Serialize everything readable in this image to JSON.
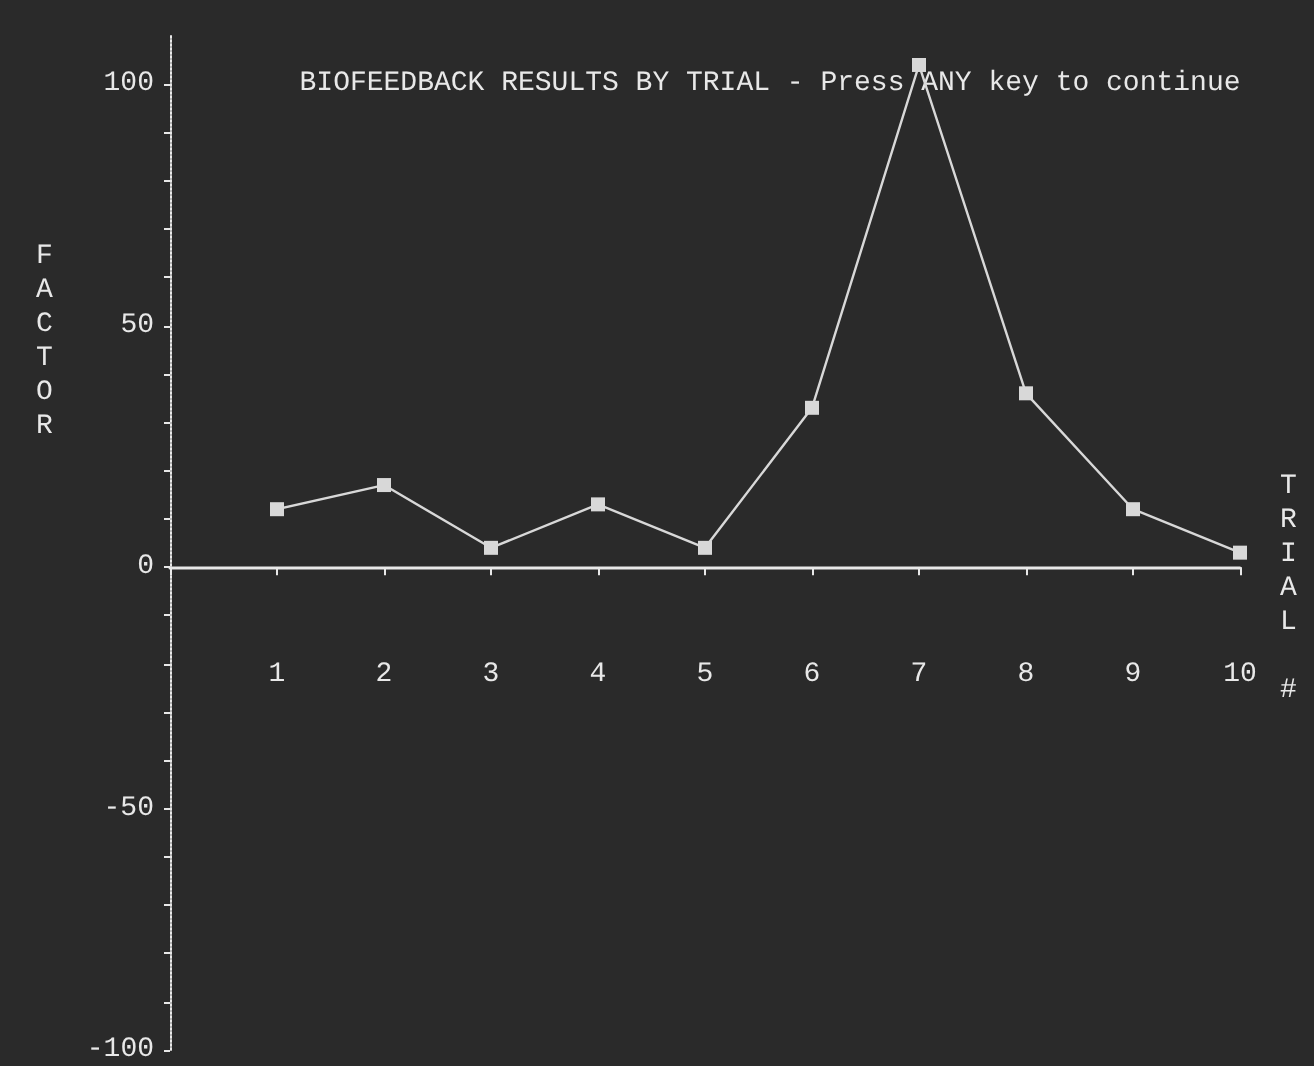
{
  "chart_data": {
    "type": "line",
    "title": "BIOFEEDBACK RESULTS BY TRIAL - Press ANY key to continue",
    "xlabel": "TRIAL #",
    "ylabel": "FACTOR",
    "x": [
      1,
      2,
      3,
      4,
      5,
      6,
      7,
      8,
      9,
      10
    ],
    "series": [
      {
        "color": "#d8d8d8",
        "values": [
          12,
          17,
          4,
          13,
          4,
          33,
          104,
          36,
          12,
          3
        ]
      }
    ],
    "xlim": [
      0,
      10
    ],
    "xticks": [
      {
        "value": 0,
        "label": null
      },
      1,
      2,
      3,
      4,
      5,
      6,
      7,
      8,
      9,
      10
    ],
    "ylim": [
      -100,
      110
    ],
    "yticks": [
      -100,
      {
        "value": -90,
        "label": null
      },
      {
        "value": -80,
        "label": null
      },
      {
        "value": -70,
        "label": null
      },
      {
        "value": -60,
        "label": null
      },
      -50,
      {
        "value": -40,
        "label": null
      },
      {
        "value": -30,
        "label": null
      },
      {
        "value": -20,
        "label": null
      },
      {
        "value": -10,
        "label": null
      },
      0,
      {
        "value": 10,
        "label": null
      },
      {
        "value": 20,
        "label": null
      },
      {
        "value": 30,
        "label": null
      },
      {
        "value": 40,
        "label": null
      },
      50,
      {
        "value": 60,
        "label": null
      },
      {
        "value": 70,
        "label": null
      },
      {
        "value": 80,
        "label": null
      },
      {
        "value": 90,
        "label": null
      },
      100
    ],
    "marker": "square",
    "line_style": "solid"
  }
}
